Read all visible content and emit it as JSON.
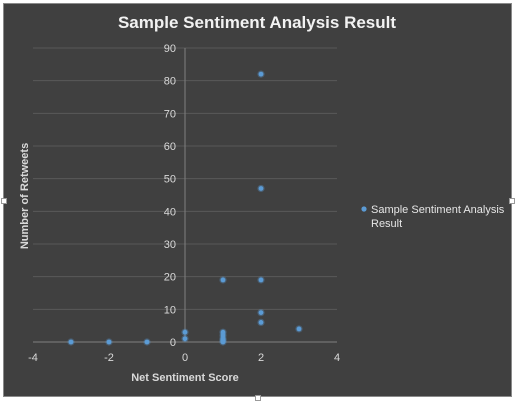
{
  "chart_data": {
    "type": "scatter",
    "title": "Sample Sentiment Analysis Result",
    "xlabel": "Net Sentiment Score",
    "ylabel": "Number of Retweets",
    "xlim": [
      -4,
      4
    ],
    "ylim": [
      0,
      90
    ],
    "x_ticks": [
      "-4",
      "-2",
      "0",
      "2",
      "4"
    ],
    "y_ticks": [
      "0",
      "10",
      "20",
      "30",
      "40",
      "50",
      "60",
      "70",
      "80",
      "90"
    ],
    "grid": true,
    "legend_position": "right",
    "series": [
      {
        "name": "Sample Sentiment Analysis Result",
        "color": "#5b9bd5",
        "points": [
          {
            "x": -3,
            "y": 0
          },
          {
            "x": -2,
            "y": 0
          },
          {
            "x": -1,
            "y": 0
          },
          {
            "x": 0,
            "y": 1
          },
          {
            "x": 0,
            "y": 3
          },
          {
            "x": 1,
            "y": 0
          },
          {
            "x": 1,
            "y": 0.5
          },
          {
            "x": 1,
            "y": 1
          },
          {
            "x": 1,
            "y": 2
          },
          {
            "x": 1,
            "y": 3
          },
          {
            "x": 1,
            "y": 19
          },
          {
            "x": 2,
            "y": 6
          },
          {
            "x": 2,
            "y": 9
          },
          {
            "x": 2,
            "y": 19
          },
          {
            "x": 2,
            "y": 47
          },
          {
            "x": 2,
            "y": 82
          },
          {
            "x": 3,
            "y": 4
          }
        ]
      }
    ]
  }
}
